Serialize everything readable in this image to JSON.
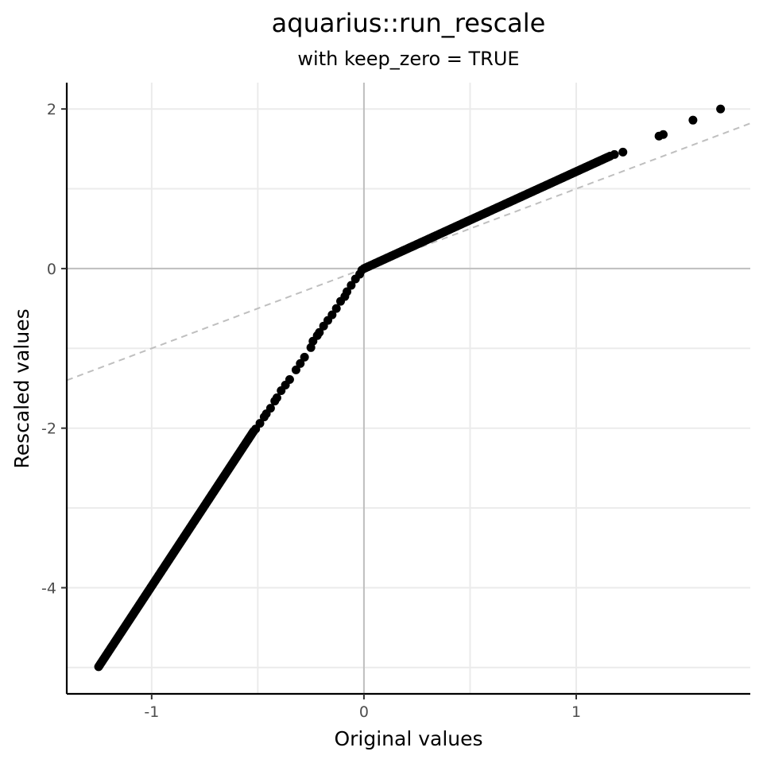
{
  "chart_data": {
    "type": "scatter",
    "title": "aquarius::run_rescale",
    "subtitle": "with keep_zero = TRUE",
    "xlabel": "Original values",
    "ylabel": "Rescaled values",
    "xlim": [
      -1.4,
      1.82
    ],
    "ylim": [
      -5.33,
      2.33
    ],
    "x_ticks": [
      -1,
      0,
      1
    ],
    "x_tick_labels": [
      "-1",
      "0",
      "1"
    ],
    "y_ticks": [
      -4,
      -2,
      0,
      2
    ],
    "y_tick_labels": [
      "-4",
      "-2",
      "0",
      "2"
    ],
    "grid": true,
    "legend": "none",
    "zero_lines": {
      "x": 0,
      "y": 0,
      "color": "#bfbfbf"
    },
    "reference_line": {
      "slope": 1,
      "intercept": 0,
      "style": "dashed",
      "color": "#bfbfbf"
    },
    "point_color": "#000000",
    "series": [
      {
        "continuous_segments": [
          {
            "x": [
              -1.25,
              -0.52
            ],
            "y": [
              -4.99,
              -2.04
            ]
          },
          {
            "x": [
              0.0,
              1.16
            ],
            "y": [
              0.0,
              1.41
            ]
          }
        ],
        "points": [
          [
            -0.51,
            -2.01
          ],
          [
            -0.49,
            -1.94
          ],
          [
            -0.47,
            -1.86
          ],
          [
            -0.46,
            -1.82
          ],
          [
            -0.44,
            -1.75
          ],
          [
            -0.42,
            -1.66
          ],
          [
            -0.41,
            -1.62
          ],
          [
            -0.39,
            -1.53
          ],
          [
            -0.37,
            -1.46
          ],
          [
            -0.35,
            -1.39
          ],
          [
            -0.32,
            -1.27
          ],
          [
            -0.3,
            -1.19
          ],
          [
            -0.28,
            -1.11
          ],
          [
            -0.25,
            -0.99
          ],
          [
            -0.24,
            -0.91
          ],
          [
            -0.22,
            -0.84
          ],
          [
            -0.21,
            -0.8
          ],
          [
            -0.19,
            -0.72
          ],
          [
            -0.17,
            -0.65
          ],
          [
            -0.15,
            -0.58
          ],
          [
            -0.13,
            -0.5
          ],
          [
            -0.11,
            -0.41
          ],
          [
            -0.09,
            -0.35
          ],
          [
            -0.08,
            -0.29
          ],
          [
            -0.06,
            -0.21
          ],
          [
            -0.04,
            -0.13
          ],
          [
            -0.02,
            -0.07
          ],
          [
            -0.01,
            -0.02
          ],
          [
            1.18,
            1.43
          ],
          [
            1.22,
            1.46
          ],
          [
            1.39,
            1.66
          ],
          [
            1.41,
            1.68
          ],
          [
            1.55,
            1.86
          ],
          [
            1.68,
            2.0
          ]
        ]
      }
    ]
  }
}
